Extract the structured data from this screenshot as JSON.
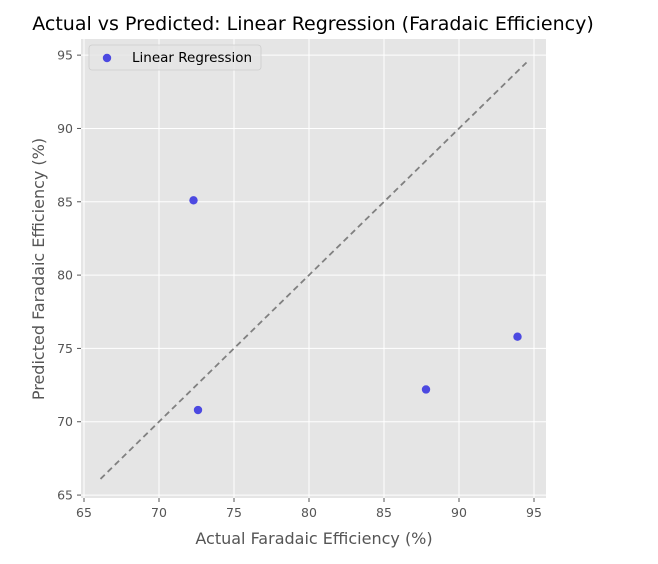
{
  "chart_data": {
    "type": "scatter",
    "title": "Actual vs Predicted: Linear Regression (Faradaic Efficiency)",
    "xlabel": "Actual Faradaic Efficiency (%)",
    "ylabel": "Predicted Faradaic Efficiency (%)",
    "xlim": [
      64.8,
      95.8
    ],
    "ylim": [
      64.8,
      96.1
    ],
    "xticks": [
      65,
      70,
      75,
      80,
      85,
      90,
      95
    ],
    "yticks": [
      65,
      70,
      75,
      80,
      85,
      90,
      95
    ],
    "grid": true,
    "legend": {
      "position": "top-left",
      "entries": [
        "Linear Regression"
      ]
    },
    "series": [
      {
        "name": "Linear Regression",
        "color": "#3b37e0",
        "points": [
          {
            "x": 72.3,
            "y": 85.1
          },
          {
            "x": 72.6,
            "y": 70.8
          },
          {
            "x": 87.8,
            "y": 72.2
          },
          {
            "x": 93.9,
            "y": 75.8
          }
        ]
      }
    ],
    "reference_line": {
      "from": [
        66.1,
        66.1
      ],
      "to": [
        94.5,
        94.5
      ],
      "style": "dashed",
      "color": "#808080"
    }
  },
  "colors": {
    "plot_background": "#e5e5e5",
    "grid": "#ffffff",
    "text": "#555555"
  }
}
